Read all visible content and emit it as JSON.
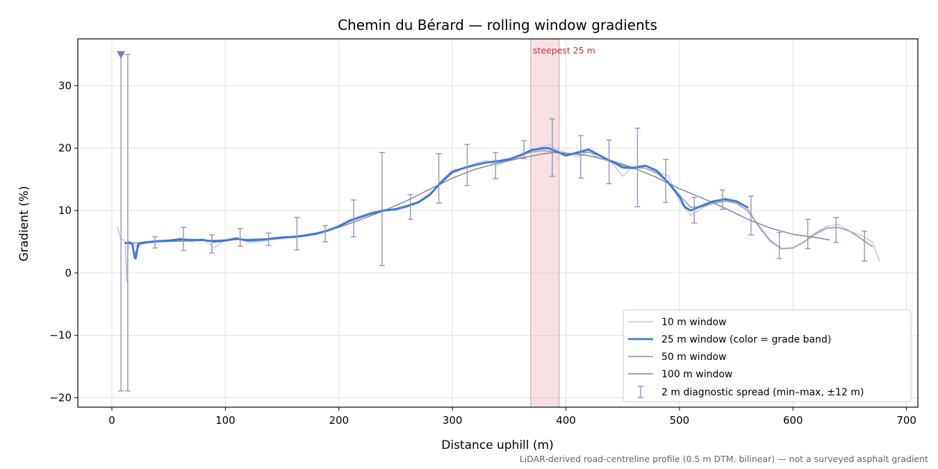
{
  "chart_data": {
    "type": "line",
    "title": "Chemin du Bérard — rolling window gradients",
    "xlabel": "Distance uphill (m)",
    "ylabel": "Gradient (%)",
    "xlim": [
      -30,
      710
    ],
    "ylim": [
      -21.5,
      37.5
    ],
    "xticks": [
      0,
      100,
      200,
      300,
      400,
      500,
      600,
      700
    ],
    "yticks": [
      -20,
      -10,
      0,
      10,
      20,
      30
    ],
    "ytick_labels": [
      "−20",
      "−10",
      "0",
      "10",
      "20",
      "30"
    ],
    "grid": true,
    "legend_position": "lower-right",
    "colors": {
      "w10": "#c5ccd8",
      "w25": "#3a78d8",
      "w50": "#a1a9bb",
      "w100": "#7f8491",
      "spread": "#9a90bb",
      "highlight": "#e8a0a8",
      "annotation": "#c03040"
    },
    "highlight_band": {
      "x": [
        369,
        394
      ],
      "label": "steepest 25 m"
    },
    "marker": {
      "x": 8,
      "y": 35,
      "shape": "triangle-down"
    },
    "series": [
      {
        "name": "10 m window",
        "x": [
          5,
          8,
          10,
          12,
          13,
          14,
          15,
          17,
          20,
          25,
          30,
          40,
          50,
          60,
          70,
          80,
          90,
          100,
          110,
          120,
          130,
          140,
          150,
          160,
          170,
          180,
          190,
          200,
          210,
          220,
          230,
          240,
          250,
          260,
          270,
          280,
          290,
          300,
          310,
          320,
          330,
          340,
          350,
          360,
          370,
          380,
          385,
          390,
          400,
          410,
          420,
          430,
          440,
          450,
          460,
          470,
          480,
          490,
          500,
          510,
          520,
          530,
          540,
          550,
          560,
          570,
          580,
          590,
          600,
          610,
          620,
          630,
          640,
          650,
          660,
          670,
          676
        ],
        "y": [
          7.3,
          5.3,
          5.4,
          4.8,
          -1.5,
          3.5,
          4.8,
          4.5,
          4.3,
          4.8,
          5.0,
          5.2,
          5.0,
          5.6,
          5.0,
          5.5,
          4.0,
          5.4,
          5.7,
          4.9,
          5.0,
          5.3,
          5.5,
          5.8,
          6.0,
          6.2,
          6.8,
          7.6,
          8.6,
          9.2,
          9.8,
          10.2,
          10.0,
          10.5,
          11.4,
          12.5,
          14.8,
          16.5,
          16.8,
          17.6,
          18.0,
          17.3,
          18.1,
          18.6,
          19.6,
          20.3,
          20.6,
          20.0,
          19.2,
          18.6,
          19.4,
          18.3,
          17.7,
          15.5,
          17.2,
          17.2,
          16.2,
          15.6,
          11.5,
          9.2,
          10.4,
          11.3,
          12.0,
          11.6,
          10.5,
          7.3,
          5.0,
          3.8,
          4.0,
          5.0,
          6.5,
          7.5,
          7.8,
          6.7,
          6.0,
          5.0,
          2.0
        ]
      },
      {
        "name": "25 m window (color = grade band)",
        "x": [
          12,
          15,
          18,
          20,
          21,
          23,
          25,
          30,
          40,
          50,
          60,
          70,
          80,
          90,
          100,
          110,
          120,
          130,
          140,
          150,
          160,
          170,
          180,
          190,
          200,
          210,
          220,
          230,
          240,
          250,
          260,
          270,
          280,
          290,
          300,
          310,
          320,
          330,
          340,
          350,
          360,
          370,
          380,
          385,
          390,
          400,
          410,
          420,
          430,
          440,
          450,
          460,
          470,
          480,
          490,
          500,
          505,
          510,
          520,
          530,
          540,
          550,
          560
        ],
        "y": [
          4.8,
          4.9,
          4.7,
          2.5,
          2.3,
          4.5,
          4.8,
          4.9,
          5.1,
          5.2,
          5.4,
          5.3,
          5.3,
          5.0,
          5.2,
          5.5,
          5.2,
          5.3,
          5.5,
          5.7,
          5.8,
          6.0,
          6.3,
          6.8,
          7.5,
          8.4,
          9.0,
          9.6,
          10.0,
          10.2,
          10.7,
          11.3,
          12.5,
          14.5,
          16.2,
          16.8,
          17.3,
          17.7,
          17.9,
          18.2,
          18.9,
          19.7,
          20.0,
          20.0,
          19.6,
          18.8,
          19.3,
          19.8,
          18.8,
          17.9,
          16.9,
          16.8,
          17.2,
          16.4,
          14.5,
          12.2,
          10.5,
          10.0,
          10.8,
          11.5,
          11.8,
          11.5,
          10.5
        ]
      },
      {
        "name": "50 m window",
        "x": [
          12,
          15,
          18,
          20,
          25,
          30,
          40,
          50,
          60,
          70,
          80,
          90,
          100,
          110,
          120,
          130,
          140,
          150,
          160,
          170,
          180,
          190,
          200,
          210,
          220,
          230,
          240,
          250,
          260,
          270,
          280,
          290,
          300,
          310,
          320,
          330,
          340,
          350,
          360,
          370,
          380,
          390,
          400,
          410,
          420,
          430,
          440,
          450,
          460,
          470,
          480,
          490,
          500,
          510,
          520,
          530,
          540,
          550,
          560,
          570,
          580,
          590,
          600,
          610,
          620,
          630,
          640,
          650,
          660,
          670
        ],
        "y": [
          4.8,
          4.7,
          4.6,
          3.0,
          4.6,
          4.8,
          5.0,
          5.1,
          5.3,
          5.2,
          5.3,
          5.0,
          5.2,
          5.4,
          5.2,
          5.3,
          5.4,
          5.6,
          5.7,
          5.9,
          6.2,
          6.7,
          7.4,
          8.3,
          9.0,
          9.6,
          10.0,
          10.3,
          10.8,
          11.4,
          12.7,
          14.4,
          16.0,
          16.8,
          17.3,
          17.7,
          18.0,
          18.3,
          18.8,
          19.4,
          19.6,
          19.4,
          19.0,
          19.2,
          19.4,
          18.8,
          17.9,
          17.2,
          16.9,
          16.8,
          16.0,
          14.5,
          12.5,
          10.5,
          10.6,
          11.2,
          11.5,
          11.2,
          10.0,
          7.5,
          5.2,
          3.9,
          4.0,
          5.0,
          6.3,
          7.2,
          7.3,
          6.7,
          5.5,
          4.2
        ]
      },
      {
        "name": "100 m window",
        "x": [
          12,
          20,
          30,
          40,
          60,
          80,
          100,
          120,
          140,
          160,
          180,
          200,
          220,
          240,
          260,
          280,
          300,
          320,
          340,
          360,
          380,
          390,
          400,
          420,
          440,
          460,
          480,
          500,
          520,
          540,
          560,
          580,
          600,
          620,
          632
        ],
        "y": [
          4.7,
          4.8,
          4.9,
          5.0,
          5.1,
          5.2,
          5.3,
          5.4,
          5.5,
          5.8,
          6.4,
          7.3,
          8.6,
          10.0,
          11.6,
          13.4,
          15.2,
          16.6,
          17.6,
          18.4,
          19.1,
          19.3,
          19.2,
          18.8,
          18.0,
          16.8,
          15.3,
          13.5,
          12.0,
          10.4,
          8.6,
          7.2,
          6.2,
          5.7,
          5.3
        ]
      }
    ],
    "spread_series": {
      "name": "2 m diagnostic spread (min–max, ±12 m)",
      "points": [
        {
          "x": 8,
          "min": -18.9,
          "max": 35.0
        },
        {
          "x": 14,
          "min": -18.9,
          "max": 35.0
        },
        {
          "x": 38,
          "min": 4.0,
          "max": 5.8
        },
        {
          "x": 63,
          "min": 3.6,
          "max": 7.3
        },
        {
          "x": 88,
          "min": 3.2,
          "max": 6.1
        },
        {
          "x": 113,
          "min": 4.3,
          "max": 7.1
        },
        {
          "x": 138,
          "min": 4.4,
          "max": 6.4
        },
        {
          "x": 163,
          "min": 3.7,
          "max": 8.9
        },
        {
          "x": 188,
          "min": 5.0,
          "max": 7.6
        },
        {
          "x": 213,
          "min": 5.8,
          "max": 11.7
        },
        {
          "x": 238,
          "min": 1.2,
          "max": 19.3
        },
        {
          "x": 263,
          "min": 8.6,
          "max": 12.6
        },
        {
          "x": 288,
          "min": 11.2,
          "max": 19.1
        },
        {
          "x": 313,
          "min": 14.0,
          "max": 20.6
        },
        {
          "x": 338,
          "min": 15.1,
          "max": 19.3
        },
        {
          "x": 363,
          "min": 18.3,
          "max": 21.2
        },
        {
          "x": 388,
          "min": 15.5,
          "max": 24.7
        },
        {
          "x": 413,
          "min": 15.2,
          "max": 22.0
        },
        {
          "x": 438,
          "min": 14.3,
          "max": 21.3
        },
        {
          "x": 463,
          "min": 10.6,
          "max": 23.2
        },
        {
          "x": 488,
          "min": 11.3,
          "max": 18.2
        },
        {
          "x": 513,
          "min": 8.0,
          "max": 12.1
        },
        {
          "x": 538,
          "min": 10.2,
          "max": 13.3
        },
        {
          "x": 563,
          "min": 6.1,
          "max": 12.3
        },
        {
          "x": 588,
          "min": 2.3,
          "max": 6.5
        },
        {
          "x": 613,
          "min": 3.9,
          "max": 8.6
        },
        {
          "x": 638,
          "min": 4.9,
          "max": 8.9
        },
        {
          "x": 663,
          "min": 1.9,
          "max": 6.7
        }
      ]
    }
  },
  "footer_note": "LiDAR-derived road-centreline profile (0.5 m DTM, bilinear) — not a surveyed asphalt gradient"
}
